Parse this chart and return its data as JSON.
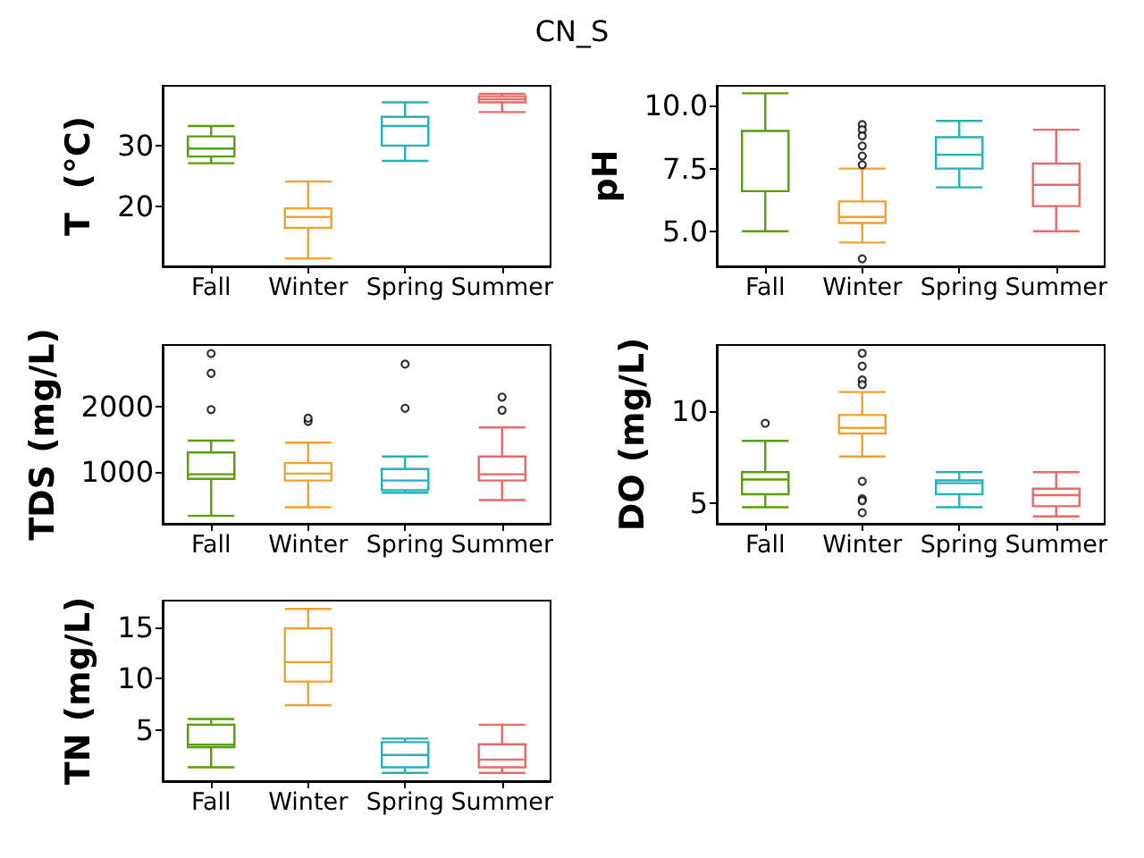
{
  "chart_data": [
    {
      "type": "box",
      "title": "CN_S",
      "ylabel": "T  (°C)",
      "categories": [
        "Fall",
        "Winter",
        "Spring",
        "Summer"
      ],
      "colors": [
        "#5a9f00",
        "#f5a02a",
        "#2ab0b8",
        "#ea6a6a"
      ],
      "ylim": [
        10.2,
        39.8
      ],
      "yticks": [
        20,
        30
      ],
      "boxes": [
        {
          "low": 27.1,
          "q1": 28.2,
          "median": 29.5,
          "q3": 31.5,
          "high": 33.2
        },
        {
          "low": 11.5,
          "q1": 16.5,
          "median": 18.3,
          "q3": 19.7,
          "high": 24.1
        },
        {
          "low": 27.5,
          "q1": 30.0,
          "median": 33.2,
          "q3": 34.7,
          "high": 37.1
        },
        {
          "low": 35.5,
          "q1": 37.1,
          "median": 37.6,
          "q3": 38.1,
          "high": 38.5
        }
      ]
    },
    {
      "type": "box",
      "ylabel": "pH",
      "categories": [
        "Fall",
        "Winter",
        "Spring",
        "Summer"
      ],
      "colors": [
        "#5a9f00",
        "#f5a02a",
        "#2ab0b8",
        "#ea6a6a"
      ],
      "ylim": [
        3.6,
        10.8
      ],
      "yticks": [
        {
          "value": 5,
          "label": "5.0"
        },
        {
          "value": 7.5,
          "label": "7.5"
        },
        {
          "value": 10,
          "label": "10.0"
        }
      ],
      "boxes": [
        {
          "low": 5.0,
          "q1": 6.6,
          "median": 9.0,
          "q3": 9.0,
          "high": 10.5
        },
        {
          "low": 4.55,
          "q1": 5.33,
          "median": 5.57,
          "q3": 6.19,
          "high": 7.5,
          "outliers": [
            9.25,
            9.05,
            8.8,
            8.4,
            8.0,
            7.65,
            3.9
          ]
        },
        {
          "low": 6.75,
          "q1": 7.5,
          "median": 8.05,
          "q3": 8.75,
          "high": 9.4
        },
        {
          "low": 5.0,
          "q1": 6.0,
          "median": 6.85,
          "q3": 7.7,
          "high": 9.05
        }
      ]
    },
    {
      "type": "box",
      "ylabel": "TDS (mg/L)",
      "categories": [
        "Fall",
        "Winter",
        "Spring",
        "Summer"
      ],
      "colors": [
        "#5a9f00",
        "#f5a02a",
        "#2ab0b8",
        "#ea6a6a"
      ],
      "ylim": [
        220,
        2930
      ],
      "yticks": [
        1000,
        2000
      ],
      "boxes": [
        {
          "low": 340,
          "q1": 900,
          "median": 970,
          "q3": 1300,
          "high": 1480,
          "outliers": [
            1950,
            2500,
            2800
          ]
        },
        {
          "low": 470,
          "q1": 875,
          "median": 980,
          "q3": 1140,
          "high": 1450,
          "outliers": [
            1770,
            1820
          ]
        },
        {
          "low": 690,
          "q1": 730,
          "median": 875,
          "q3": 1050,
          "high": 1240,
          "outliers": [
            1970,
            2640
          ]
        },
        {
          "low": 580,
          "q1": 875,
          "median": 970,
          "q3": 1240,
          "high": 1680,
          "outliers": [
            1940,
            2140
          ]
        }
      ]
    },
    {
      "type": "box",
      "ylabel": "DO (mg/L)",
      "categories": [
        "Fall",
        "Winter",
        "Spring",
        "Summer"
      ],
      "colors": [
        "#5a9f00",
        "#f5a02a",
        "#2ab0b8",
        "#ea6a6a"
      ],
      "ylim": [
        3.9,
        13.6
      ],
      "yticks": [
        5,
        10
      ],
      "boxes": [
        {
          "low": 4.8,
          "q1": 5.5,
          "median": 6.3,
          "q3": 6.7,
          "high": 8.4,
          "outliers": [
            9.35
          ]
        },
        {
          "low": 7.55,
          "q1": 8.8,
          "median": 9.1,
          "q3": 9.8,
          "high": 11.05,
          "outliers": [
            13.15,
            12.45,
            11.7,
            11.45,
            6.2,
            5.25,
            5.15,
            4.5
          ]
        },
        {
          "low": 4.8,
          "q1": 5.5,
          "median": 6.1,
          "q3": 6.25,
          "high": 6.7
        },
        {
          "low": 4.3,
          "q1": 4.85,
          "median": 5.45,
          "q3": 5.8,
          "high": 6.7
        }
      ]
    },
    {
      "type": "box",
      "ylabel": "TN (mg/L)",
      "categories": [
        "Fall",
        "Winter",
        "Spring",
        "Summer"
      ],
      "colors": [
        "#5a9f00",
        "#f5a02a",
        "#2ab0b8",
        "#ea6a6a"
      ],
      "ylim": [
        0,
        17.6
      ],
      "yticks": [
        5,
        10,
        15
      ],
      "boxes": [
        {
          "low": 1.35,
          "q1": 3.3,
          "median": 3.55,
          "q3": 5.5,
          "high": 6.05
        },
        {
          "low": 7.4,
          "q1": 9.7,
          "median": 11.6,
          "q3": 14.9,
          "high": 16.8
        },
        {
          "low": 0.8,
          "q1": 1.35,
          "median": 2.55,
          "q3": 3.8,
          "high": 4.15
        },
        {
          "low": 0.8,
          "q1": 1.35,
          "median": 2.1,
          "q3": 3.6,
          "high": 5.5
        }
      ]
    }
  ]
}
